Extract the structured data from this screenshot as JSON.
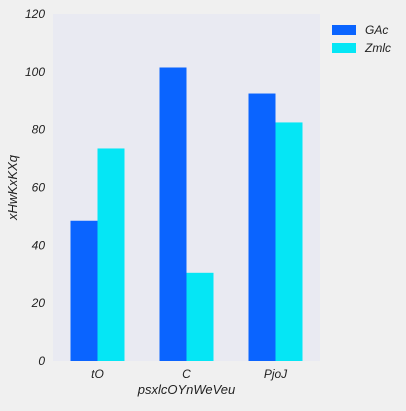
{
  "chart_data": {
    "type": "bar",
    "title": "",
    "xlabel": "psxlcOYnWeVeu",
    "ylabel": "xHwKxKXq",
    "categories": [
      "tO",
      "C",
      "PjoJ"
    ],
    "series": [
      {
        "name": "GAc",
        "color": "#0a64ff",
        "values": [
          48.5,
          101.5,
          92.5
        ]
      },
      {
        "name": "Zmlc",
        "color": "#05e6f5",
        "values": [
          73.5,
          30.5,
          82.5
        ]
      }
    ],
    "ylim": [
      0,
      120
    ],
    "yticks": [
      0,
      20,
      40,
      60,
      80,
      100,
      120
    ],
    "grid": false,
    "legend_position": "top-right",
    "plot_background": "#e9eaf2"
  }
}
